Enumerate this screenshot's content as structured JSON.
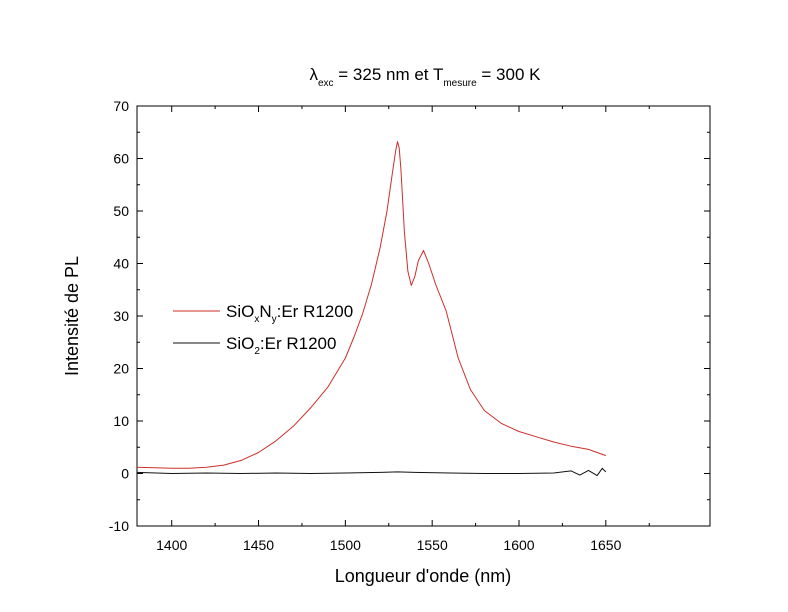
{
  "chart_data": {
    "type": "line",
    "title": {
      "lambda": "λ",
      "exc": "exc",
      "mid": " = 325 nm et T",
      "mesure": "mesure",
      "end": " = 300 K"
    },
    "xlabel": "Longueur d'onde (nm)",
    "ylabel": "Intensité de PL",
    "xlim": [
      1380,
      1710
    ],
    "ylim": [
      -10,
      70
    ],
    "xticks": [
      1400,
      1450,
      1500,
      1550,
      1600,
      1650
    ],
    "yticks": [
      -10,
      0,
      10,
      20,
      30,
      40,
      50,
      60,
      70
    ],
    "legend_position": "center-left",
    "series": [
      {
        "legend": {
          "a": "SiO",
          "b": "x",
          "c": "N",
          "d": "y",
          "e": ":Er R1200"
        },
        "color": "#cc2f2a",
        "x": [
          1380,
          1390,
          1400,
          1410,
          1420,
          1430,
          1440,
          1450,
          1460,
          1470,
          1480,
          1490,
          1500,
          1505,
          1510,
          1515,
          1520,
          1524,
          1527,
          1529,
          1530,
          1531,
          1532,
          1534,
          1536,
          1538,
          1540,
          1542,
          1545,
          1548,
          1552,
          1558,
          1565,
          1572,
          1580,
          1590,
          1600,
          1610,
          1620,
          1630,
          1640,
          1645,
          1650
        ],
        "y": [
          1.2,
          1.1,
          1.0,
          1.0,
          1.2,
          1.6,
          2.5,
          4.0,
          6.2,
          9.0,
          12.5,
          16.5,
          22.0,
          26.0,
          30.5,
          36.0,
          43.0,
          50.0,
          57.0,
          61.5,
          63.2,
          62.0,
          58.0,
          46.0,
          38.5,
          35.8,
          37.5,
          40.5,
          42.5,
          40.0,
          36.0,
          31.0,
          22.0,
          16.0,
          12.0,
          9.5,
          8.0,
          7.0,
          6.0,
          5.2,
          4.6,
          4.0,
          3.4
        ]
      },
      {
        "legend": {
          "a": "SiO",
          "b": "2",
          "e": ":Er R1200"
        },
        "color": "#111111",
        "x": [
          1380,
          1400,
          1420,
          1440,
          1460,
          1480,
          1500,
          1520,
          1530,
          1540,
          1560,
          1580,
          1600,
          1620,
          1630,
          1635,
          1640,
          1645,
          1648,
          1650
        ],
        "y": [
          0.2,
          0.0,
          0.1,
          0.0,
          0.1,
          0.0,
          0.1,
          0.2,
          0.3,
          0.2,
          0.1,
          0.0,
          0.0,
          0.1,
          0.5,
          -0.3,
          0.6,
          -0.4,
          1.0,
          0.3
        ]
      }
    ]
  }
}
